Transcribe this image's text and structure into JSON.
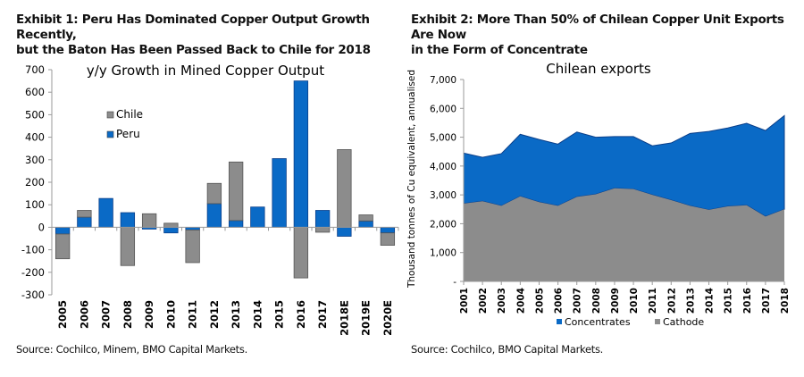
{
  "exhibit1": {
    "title_line1": "Exhibit 1: Peru Has Dominated Copper Output Growth Recently,",
    "title_line2": "but the Baton Has Been Passed Back to Chile for 2018",
    "source": "Source: Cochilco, Minem, BMO Capital Markets."
  },
  "exhibit2": {
    "title_line1": "Exhibit 2: More Than 50% of Chilean Copper Unit Exports Are Now",
    "title_line2": "in the Form of Concentrate",
    "source": "Source: Cochilco, BMO Capital Markets."
  },
  "colors": {
    "chile": "#8c8c8c",
    "peru": "#0a6ac6",
    "concentrates": "#0a6ac6",
    "cathode": "#8c8c8c",
    "axis": "#9a9a9a"
  },
  "chart_data": [
    {
      "type": "bar",
      "stacked": true,
      "title": "y/y Growth in Mined Copper Output",
      "xlabel": "",
      "ylabel": "",
      "ylim": [
        -300,
        700
      ],
      "yticks": [
        700,
        600,
        500,
        400,
        300,
        200,
        100,
        0,
        -100,
        -200,
        -300
      ],
      "grid": false,
      "legend_position": "upper-left",
      "categories": [
        "2005",
        "2006",
        "2007",
        "2008",
        "2009",
        "2010",
        "2011",
        "2012",
        "2013",
        "2014",
        "2015",
        "2016",
        "2017",
        "2018E",
        "2019E",
        "2020E"
      ],
      "series": [
        {
          "name": "Chile",
          "values": [
            -110,
            30,
            0,
            -170,
            60,
            18,
            -145,
            90,
            260,
            0,
            0,
            -225,
            -22,
            345,
            27,
            -55
          ]
        },
        {
          "name": "Peru",
          "values": [
            -30,
            45,
            128,
            65,
            -8,
            -25,
            -12,
            105,
            30,
            90,
            305,
            650,
            75,
            -40,
            28,
            -25
          ]
        }
      ]
    },
    {
      "type": "area",
      "stacked": true,
      "title": "Chilean exports",
      "xlabel": "",
      "ylabel": "Thousand tonnes of Cu equivalent, annualised",
      "ylim": [
        0,
        7000
      ],
      "yticks": [
        "-",
        "1,000",
        "2,000",
        "3,000",
        "4,000",
        "5,000",
        "6,000",
        "7,000"
      ],
      "grid": false,
      "legend_position": "bottom",
      "categories": [
        "2001",
        "2002",
        "2003",
        "2004",
        "2005",
        "2006",
        "2007",
        "2008",
        "2009",
        "2010",
        "2011",
        "2012",
        "2013",
        "2014",
        "2015",
        "2016",
        "2017",
        "2018"
      ],
      "series": [
        {
          "name": "Cathode",
          "values": [
            2700,
            2780,
            2620,
            2950,
            2750,
            2620,
            2930,
            3020,
            3230,
            3200,
            3000,
            2820,
            2620,
            2480,
            2600,
            2640,
            2250,
            2500
          ]
        },
        {
          "name": "Concentrates",
          "values": [
            1750,
            1520,
            1810,
            2150,
            2170,
            2140,
            2250,
            1980,
            1790,
            1820,
            1700,
            1980,
            2510,
            2720,
            2720,
            2840,
            2980,
            3250
          ]
        }
      ]
    }
  ]
}
